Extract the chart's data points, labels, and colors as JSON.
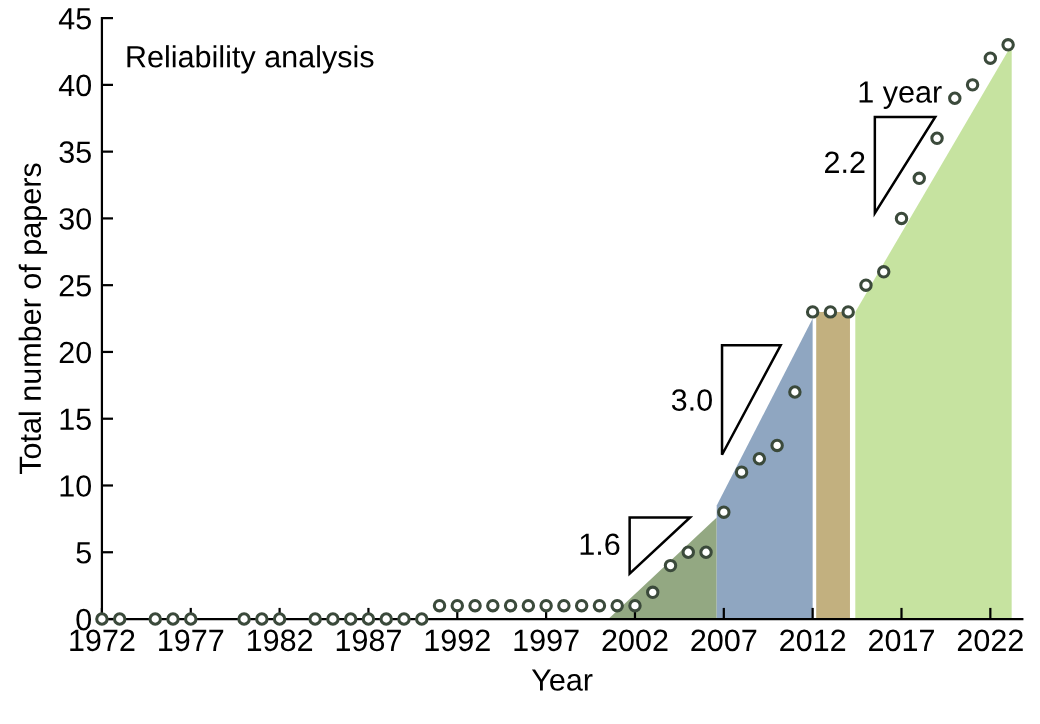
{
  "chart_data": {
    "type": "scatter",
    "title": "Reliability analysis",
    "xlabel": "Year",
    "ylabel": "Total number of papers",
    "series": [
      {
        "type": "area",
        "color": "#93a882",
        "x": [
          2000.5,
          2006.6
        ],
        "values": [
          0,
          7.6
        ]
      },
      {
        "type": "area",
        "color": "#8fa6c1",
        "x": [
          2006.6,
          2012.0
        ],
        "values": [
          8.5,
          22.5
        ]
      },
      {
        "type": "area",
        "color": "#c2b07f",
        "x": [
          2012.2,
          2014.1
        ],
        "values": [
          23,
          23
        ]
      },
      {
        "type": "area",
        "color": "#c6e3a0",
        "x": [
          2014.4,
          2023.2
        ],
        "values": [
          23,
          43
        ]
      },
      {
        "color": "#3b4a3b",
        "marker": "circle",
        "x": [
          1972,
          1973,
          1975,
          1976,
          1977,
          1980,
          1981,
          1982,
          1984,
          1985,
          1986,
          1987,
          1988,
          1989,
          1990,
          1991,
          1992,
          1993,
          1994,
          1995,
          1996,
          1997,
          1998,
          1999,
          2000,
          2001,
          2002,
          2003,
          2004,
          2005,
          2006,
          2007,
          2008,
          2009,
          2010,
          2011,
          2012,
          2013,
          2014,
          2015,
          2016,
          2017,
          2018,
          2019,
          2020,
          2021,
          2022,
          2023
        ],
        "values": [
          0,
          0,
          0,
          0,
          0,
          0,
          0,
          0,
          0,
          0,
          0,
          0,
          0,
          0,
          0,
          1,
          1,
          1,
          1,
          1,
          1,
          1,
          1,
          1,
          1,
          1,
          1,
          2,
          4,
          5,
          5,
          8,
          11,
          12,
          13,
          17,
          23,
          23,
          23,
          25,
          26,
          30,
          33,
          36,
          39,
          40,
          42,
          43
        ]
      }
    ],
    "annotations": [
      "1.6",
      "3.0",
      "2.2",
      "1 year"
    ],
    "xlim": [
      1972,
      2023.8
    ],
    "xticks": [
      1972,
      1977,
      1982,
      1987,
      1992,
      1997,
      2002,
      2007,
      2012,
      2017,
      2022
    ],
    "ylim": [
      0,
      45
    ],
    "yticks": [
      0,
      5,
      10,
      15,
      20,
      25,
      30,
      35,
      40,
      45
    ],
    "grid": false,
    "legend": false
  }
}
